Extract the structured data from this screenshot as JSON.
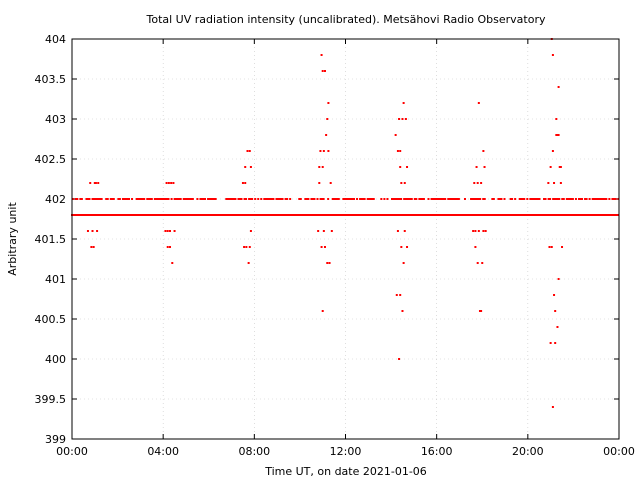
{
  "chart_data": {
    "type": "scatter",
    "title": "Total UV radiation intensity (uncalibrated). Metsähovi Radio Observatory",
    "xlabel": "Time UT, on date 2021-01-06",
    "ylabel": "Arbitrary unit",
    "xlim": [
      0,
      24
    ],
    "ylim": [
      399,
      404
    ],
    "x_ticks": [
      0,
      4,
      8,
      12,
      16,
      20,
      24
    ],
    "x_tick_labels": [
      "00:00",
      "04:00",
      "08:00",
      "12:00",
      "16:00",
      "20:00",
      "00:00"
    ],
    "y_ticks": [
      399,
      399.5,
      400,
      400.5,
      401,
      401.5,
      402,
      402.5,
      403,
      403.5,
      404
    ],
    "y_tick_labels": [
      "399",
      "399.5",
      "400",
      "400.5",
      "401",
      "401.5",
      "402",
      "402.5",
      "403",
      "403.5",
      "404"
    ],
    "grid": true,
    "legend": "none",
    "marker_color": "#ff0000",
    "x_units": "hours UT",
    "series": [
      {
        "x_range": [
          0,
          24
        ],
        "x_step": 0.0667,
        "baseline_levels": [
          401.8,
          402.0
        ],
        "spikes": [
          {
            "x": 0.7,
            "y": 401.6
          },
          {
            "x": 0.8,
            "y": 402.2
          },
          {
            "x": 0.85,
            "y": 401.4
          },
          {
            "x": 0.95,
            "y": 401.4
          },
          {
            "x": 0.9,
            "y": 401.6
          },
          {
            "x": 1.0,
            "y": 402.2
          },
          {
            "x": 1.05,
            "y": 402.2
          },
          {
            "x": 1.1,
            "y": 401.6
          },
          {
            "x": 1.15,
            "y": 402.2
          },
          {
            "x": 4.1,
            "y": 401.6
          },
          {
            "x": 4.15,
            "y": 402.2
          },
          {
            "x": 4.2,
            "y": 401.4
          },
          {
            "x": 4.25,
            "y": 402.2
          },
          {
            "x": 4.3,
            "y": 401.4
          },
          {
            "x": 4.35,
            "y": 402.2
          },
          {
            "x": 4.4,
            "y": 401.2
          },
          {
            "x": 4.45,
            "y": 402.2
          },
          {
            "x": 4.5,
            "y": 401.6
          },
          {
            "x": 4.2,
            "y": 401.6
          },
          {
            "x": 4.3,
            "y": 401.6
          },
          {
            "x": 7.5,
            "y": 402.2
          },
          {
            "x": 7.55,
            "y": 401.4
          },
          {
            "x": 7.6,
            "y": 402.4
          },
          {
            "x": 7.65,
            "y": 401.4
          },
          {
            "x": 7.7,
            "y": 402.6
          },
          {
            "x": 7.75,
            "y": 401.2
          },
          {
            "x": 7.8,
            "y": 402.6
          },
          {
            "x": 7.8,
            "y": 401.4
          },
          {
            "x": 7.85,
            "y": 402.4
          },
          {
            "x": 7.85,
            "y": 401.6
          },
          {
            "x": 7.6,
            "y": 402.2
          },
          {
            "x": 10.8,
            "y": 401.6
          },
          {
            "x": 10.85,
            "y": 402.2
          },
          {
            "x": 10.9,
            "y": 402.6
          },
          {
            "x": 10.95,
            "y": 403.8
          },
          {
            "x": 10.95,
            "y": 401.4
          },
          {
            "x": 11.0,
            "y": 403.6
          },
          {
            "x": 11.0,
            "y": 400.6
          },
          {
            "x": 11.05,
            "y": 402.6
          },
          {
            "x": 11.1,
            "y": 403.6
          },
          {
            "x": 11.1,
            "y": 401.4
          },
          {
            "x": 11.15,
            "y": 402.8
          },
          {
            "x": 11.2,
            "y": 403.0
          },
          {
            "x": 11.2,
            "y": 401.2
          },
          {
            "x": 11.25,
            "y": 403.2
          },
          {
            "x": 11.25,
            "y": 402.6
          },
          {
            "x": 11.3,
            "y": 401.2
          },
          {
            "x": 11.35,
            "y": 402.2
          },
          {
            "x": 11.4,
            "y": 401.6
          },
          {
            "x": 10.85,
            "y": 402.4
          },
          {
            "x": 11.0,
            "y": 402.4
          },
          {
            "x": 11.05,
            "y": 401.6
          },
          {
            "x": 14.2,
            "y": 402.8
          },
          {
            "x": 14.25,
            "y": 400.8
          },
          {
            "x": 14.3,
            "y": 401.6
          },
          {
            "x": 14.3,
            "y": 402.6
          },
          {
            "x": 14.35,
            "y": 403.0
          },
          {
            "x": 14.35,
            "y": 400.0
          },
          {
            "x": 14.4,
            "y": 402.6
          },
          {
            "x": 14.4,
            "y": 400.8
          },
          {
            "x": 14.45,
            "y": 401.4
          },
          {
            "x": 14.45,
            "y": 402.2
          },
          {
            "x": 14.5,
            "y": 403.0
          },
          {
            "x": 14.5,
            "y": 400.6
          },
          {
            "x": 14.55,
            "y": 403.2
          },
          {
            "x": 14.55,
            "y": 401.2
          },
          {
            "x": 14.6,
            "y": 402.2
          },
          {
            "x": 14.6,
            "y": 401.6
          },
          {
            "x": 14.65,
            "y": 403.0
          },
          {
            "x": 14.7,
            "y": 402.4
          },
          {
            "x": 14.7,
            "y": 401.4
          },
          {
            "x": 14.4,
            "y": 402.4
          },
          {
            "x": 17.6,
            "y": 401.6
          },
          {
            "x": 17.65,
            "y": 402.2
          },
          {
            "x": 17.7,
            "y": 401.4
          },
          {
            "x": 17.75,
            "y": 402.4
          },
          {
            "x": 17.8,
            "y": 401.2
          },
          {
            "x": 17.85,
            "y": 403.2
          },
          {
            "x": 17.85,
            "y": 401.6
          },
          {
            "x": 17.9,
            "y": 400.6
          },
          {
            "x": 17.95,
            "y": 400.6
          },
          {
            "x": 17.95,
            "y": 402.2
          },
          {
            "x": 18.0,
            "y": 401.2
          },
          {
            "x": 18.05,
            "y": 402.6
          },
          {
            "x": 18.05,
            "y": 401.6
          },
          {
            "x": 18.1,
            "y": 402.4
          },
          {
            "x": 18.15,
            "y": 401.6
          },
          {
            "x": 17.7,
            "y": 401.6
          },
          {
            "x": 17.8,
            "y": 402.2
          },
          {
            "x": 20.9,
            "y": 402.2
          },
          {
            "x": 20.95,
            "y": 401.4
          },
          {
            "x": 21.0,
            "y": 402.4
          },
          {
            "x": 21.0,
            "y": 400.2
          },
          {
            "x": 21.05,
            "y": 404.0
          },
          {
            "x": 21.05,
            "y": 401.4
          },
          {
            "x": 21.1,
            "y": 403.8
          },
          {
            "x": 21.1,
            "y": 402.6
          },
          {
            "x": 21.1,
            "y": 399.4
          },
          {
            "x": 21.15,
            "y": 400.8
          },
          {
            "x": 21.15,
            "y": 402.2
          },
          {
            "x": 21.2,
            "y": 400.2
          },
          {
            "x": 21.2,
            "y": 400.6
          },
          {
            "x": 21.25,
            "y": 403.0
          },
          {
            "x": 21.25,
            "y": 402.8
          },
          {
            "x": 21.3,
            "y": 400.4
          },
          {
            "x": 21.3,
            "y": 402.8
          },
          {
            "x": 21.35,
            "y": 401.0
          },
          {
            "x": 21.35,
            "y": 403.4
          },
          {
            "x": 21.35,
            "y": 402.8
          },
          {
            "x": 21.4,
            "y": 402.4
          },
          {
            "x": 21.45,
            "y": 402.4
          },
          {
            "x": 21.5,
            "y": 401.4
          },
          {
            "x": 21.45,
            "y": 402.2
          }
        ]
      }
    ]
  }
}
